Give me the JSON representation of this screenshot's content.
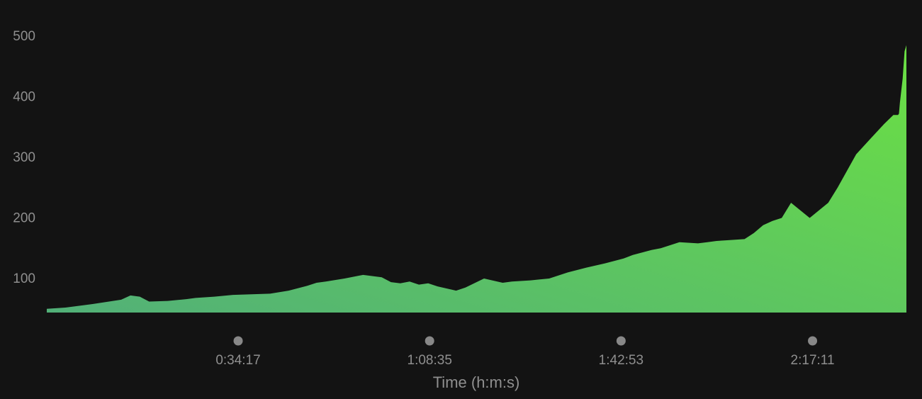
{
  "colors": {
    "background": "#131313",
    "area_top": "#6be043",
    "area_bottom": "#52b078",
    "tick_text": "#8f8f8f",
    "tick_marker": "#888888"
  },
  "chart_data": {
    "type": "area",
    "title": "",
    "xlabel": "Time (h:m:s)",
    "ylabel": "",
    "x_unit": "seconds",
    "xlim": [
      0,
      9240
    ],
    "ylim": [
      45,
      500
    ],
    "grid": false,
    "legend": "none",
    "y_ticks": [
      100,
      200,
      300,
      400,
      500
    ],
    "x_ticks": [
      {
        "value": 2057,
        "label": "0:34:17"
      },
      {
        "value": 4115,
        "label": "1:08:35"
      },
      {
        "value": 6173,
        "label": "1:42:53"
      },
      {
        "value": 8231,
        "label": "2:17:11"
      }
    ],
    "series": [
      {
        "x": [
          0,
          200,
          500,
          800,
          900,
          1000,
          1100,
          1300,
          1500,
          1600,
          1800,
          2000,
          2200,
          2400,
          2600,
          2800,
          2900,
          3000,
          3200,
          3400,
          3600,
          3700,
          3800,
          3900,
          4000,
          4100,
          4200,
          4400,
          4500,
          4700,
          4900,
          5000,
          5200,
          5400,
          5600,
          5800,
          6000,
          6200,
          6250,
          6300,
          6400,
          6500,
          6600,
          6700,
          6800,
          7000,
          7100,
          7200,
          7300,
          7500,
          7600,
          7700,
          7800,
          7900,
          8000,
          8200,
          8400,
          8500,
          8700,
          8850,
          9000,
          9100,
          9150,
          9160,
          9170,
          9200,
          9220,
          9240
        ],
        "values": [
          50,
          52,
          58,
          65,
          72,
          70,
          62,
          63,
          66,
          68,
          70,
          73,
          74,
          75,
          80,
          88,
          93,
          95,
          100,
          106,
          102,
          94,
          92,
          95,
          90,
          92,
          87,
          80,
          85,
          100,
          93,
          95,
          97,
          100,
          110,
          118,
          125,
          133,
          136,
          139,
          143,
          147,
          150,
          155,
          160,
          158,
          160,
          162,
          163,
          165,
          175,
          188,
          195,
          200,
          225,
          200,
          225,
          250,
          305,
          330,
          355,
          370,
          370,
          372,
          390,
          430,
          475,
          485
        ]
      }
    ]
  }
}
